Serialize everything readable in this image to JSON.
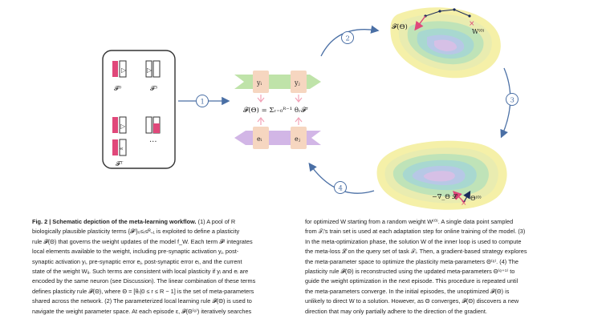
{
  "figure": {
    "pool_labels": [
      "𝓕⁰",
      "𝓕³",
      "𝓕ᵀ"
    ],
    "pool_ellipsis": "···",
    "step_labels": [
      "1",
      "2",
      "3",
      "4"
    ],
    "center_equation": "𝓕(Θ) = Σᵣ₌₀ᴿ⁻¹ θᵣ𝓕ʳ",
    "tokens": {
      "yi": "yᵢ",
      "yj": "yⱼ",
      "ei": "eᵢ",
      "ej": "eⱼ"
    },
    "top_landscape": {
      "theta_label": "𝓕(Θ)",
      "w_label": "W⁽⁰⁾"
    },
    "bottom_landscape": {
      "grad_label": "−∇_Θ 𝓛",
      "theta_label": "Θ⁽⁰⁾"
    },
    "colors": {
      "pink": "#f2a3b8",
      "rose": "#e0487a",
      "peach": "#f6d6c0",
      "green": "#bfe3a9",
      "purple": "#d2b6e6",
      "arrow_blue": "#4a6fa5"
    }
  },
  "caption": {
    "left_label": "Fig. 2 | Schematic depiction of the meta-learning workflow.",
    "left_lines": [
      "(1) A pool of R",
      "biologically plausible plasticity terms {𝓕ʳ}₀≤ᵣ≤ᴿ₋₁ is exploited to define a plasticity",
      "rule 𝓕(Θ) that governs the weight updates of the model f_W. Each term 𝓕ʳ integrates",
      "local elements available to the weight, including pre-synaptic activation yⱼ, post-",
      "synaptic activation yᵢ, pre-synaptic error eⱼ, post-synaptic error eᵢ, and the current",
      "state of the weight Wᵢⱼ. Such terms are consistent with local plasticity if yᵢ and eᵢ are",
      "encoded by the same neuron (see Discussion). The linear combination of these terms",
      "defines plasticity rule 𝓕(Θ), where Θ = [θᵣ|0 ≤ r ≤ R − 1] is the set of meta-parameters",
      "shared across the network. (2) The parameterized local learning rule 𝓕(Θ) is used to",
      "navigate the weight parameter space. At each episode ε, 𝓕(Θ⁽ᵉ⁾) iteratively searches"
    ],
    "right_lines": [
      "for optimized W starting from a random weight W⁽⁰⁾. A single data point sampled",
      "from 𝒯ᵢ's train set is used at each adaptation step for online training of the model. (3)",
      "In the meta-optimization phase, the solution W of the inner loop is used to compute",
      "the meta-loss 𝓛 on the query set of task 𝒯ᵢ. Then, a gradient-based strategy explores",
      "the meta-parameter space to optimize the plasticity meta-parameters Θ⁽ᵉ⁾. (4) The",
      "plasticity rule 𝓕(Θ) is reconstructed using the updated meta-parameters Θ⁽ᵉ⁺¹⁾ to",
      "guide the weight optimization in the next episode. This procedure is repeated until",
      "the meta-parameters converge. In the initial episodes, the unoptimized 𝓕(Θ) is",
      "unlikely to direct W to a solution. However, as Θ converges, 𝓕(Θ) discovers a new",
      "direction that may only partially adhere to the direction of the gradient."
    ]
  }
}
